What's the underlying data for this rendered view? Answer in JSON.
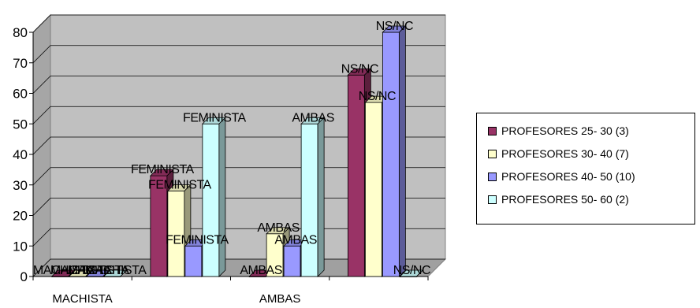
{
  "chart_data": {
    "type": "bar",
    "three_d": true,
    "categories": [
      "MACHISTA",
      "FEMINISTA",
      "AMBAS",
      "NS/NC"
    ],
    "x_tick_labels_shown": [
      "MACHISTA",
      "AMBAS"
    ],
    "series": [
      {
        "name": "PROFESORES 25- 30 (3)",
        "color": "#993366",
        "values": [
          0,
          33,
          0,
          66
        ],
        "labels": [
          "MACHISTA",
          "FEMINISTA",
          "AMBAS",
          "NS/NC"
        ]
      },
      {
        "name": "PROFESORES 30- 40 (7)",
        "color": "#ffffcc",
        "values": [
          0,
          28,
          14,
          57
        ],
        "labels": [
          "MACHISTA",
          "FEMINISTA",
          "AMBAS",
          "NS/NC"
        ]
      },
      {
        "name": "PROFESORES 40- 50 (10)",
        "color": "#9999ff",
        "values": [
          0,
          10,
          10,
          80
        ],
        "labels": [
          "MACHISTA",
          "FEMINISTA",
          "AMBAS",
          "NS/NC"
        ]
      },
      {
        "name": "PROFESORES 50- 60 (2)",
        "color": "#ccffff",
        "values": [
          0,
          50,
          50,
          0
        ],
        "labels": [
          "MACHISTA",
          "FEMINISTA",
          "AMBAS",
          "NS/NC"
        ]
      }
    ],
    "ylim": [
      0,
      80
    ],
    "yticks": [
      0,
      10,
      20,
      30,
      40,
      50,
      60,
      70,
      80
    ],
    "grid": true,
    "legend_position": "right"
  }
}
